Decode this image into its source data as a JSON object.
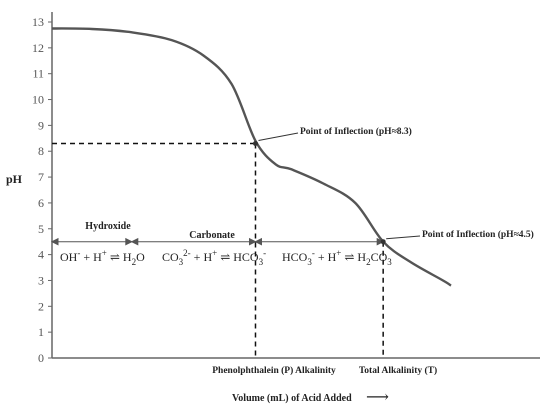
{
  "chart_data": {
    "type": "line",
    "title": "",
    "xlabel": "Volume (mL) of Acid Added",
    "xlabel_arrow": "⟶",
    "ylabel": "pH",
    "ylim": [
      0,
      13
    ],
    "yticks": [
      0,
      1,
      2,
      3,
      4,
      5,
      6,
      7,
      8,
      9,
      10,
      11,
      12,
      13
    ],
    "xlim": [
      0,
      10
    ],
    "grid": false,
    "series": [
      {
        "x": [
          0.0,
          1.0,
          2.0,
          3.0,
          3.8,
          4.5,
          5.1,
          5.6,
          6.0,
          6.8,
          7.6,
          8.3,
          9.0,
          9.8,
          10.0
        ],
        "y": [
          12.75,
          12.73,
          12.6,
          12.3,
          11.7,
          10.6,
          8.4,
          7.5,
          7.3,
          6.75,
          6.0,
          4.5,
          3.7,
          3.0,
          2.8
        ]
      }
    ],
    "reference_lines": {
      "p_volume": 5.1,
      "t_volume": 8.3,
      "p_ph": 8.3,
      "t_ph": 4.5
    },
    "annotations": {
      "inflection_p": "Point of Inflection (pH≈8.3)",
      "inflection_t": "Point of Inflection (pH≈4.5)",
      "p_alkalinity": "Phenolphthalein  (P)  Alkalinity",
      "t_alkalinity": "Total Alkalinity  (T)"
    },
    "regions": {
      "level_ph": 4.5,
      "hydroxide": {
        "label": "Hydroxide",
        "start": 0.0,
        "end": 2.0,
        "eq_a": "OH",
        "eq_a_sup": "-",
        "eq_b": " + H",
        "eq_b_sup": "+",
        "eq_arrow": " ⇌ ",
        "eq_c": "H",
        "eq_c_sub": "2",
        "eq_d": "O"
      },
      "carbonate": {
        "label": "Carbonate",
        "start": 2.0,
        "end": 5.1,
        "eq_a": "CO",
        "eq_a_sub": "3",
        "eq_a_sup": "2-",
        "eq_b": " + H",
        "eq_b_sup": "+",
        "eq_arrow": " ⇌ ",
        "eq_c": "HCO",
        "eq_c_sub": "3",
        "eq_c_sup": "-"
      },
      "bicarbonate": {
        "start": 5.1,
        "end": 8.3,
        "eq_a": "HCO",
        "eq_a_sub": "3",
        "eq_a_sup": "-",
        "eq_b": " + H",
        "eq_b_sup": "+",
        "eq_arrow": " ⇌ ",
        "eq_c": "H",
        "eq_c_sub": "2",
        "eq_d": "CO",
        "eq_d_sub": "3"
      }
    }
  }
}
